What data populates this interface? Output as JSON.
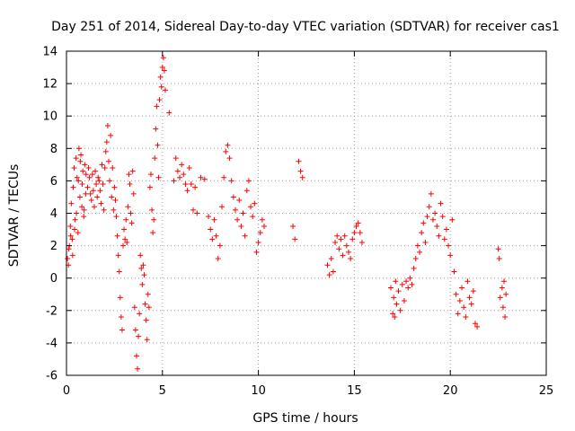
{
  "chart_data": {
    "type": "scatter",
    "title": "Day 251 of 2014, Sidereal Day-to-day VTEC variation (SDTVAR) for receiver cas1",
    "xlabel": "GPS time / hours",
    "ylabel": "SDTVAR / TECUs",
    "xlim": [
      0,
      25
    ],
    "ylim": [
      -6,
      14
    ],
    "xticks": [
      "0",
      "5",
      "10",
      "15",
      "20",
      "25"
    ],
    "yticks": [
      "-6",
      "-4",
      "-2",
      "0",
      "2",
      "4",
      "6",
      "8",
      "10",
      "12",
      "14"
    ],
    "grid": true,
    "marker": "+",
    "color": "#ff0000",
    "series": [
      {
        "name": "SDTVAR",
        "points": [
          [
            0.05,
            1.2
          ],
          [
            0.1,
            0.8
          ],
          [
            0.15,
            2.0
          ],
          [
            0.2,
            3.2
          ],
          [
            0.25,
            4.6
          ],
          [
            0.3,
            2.4
          ],
          [
            0.35,
            5.6
          ],
          [
            0.4,
            6.8
          ],
          [
            0.45,
            3.6
          ],
          [
            0.5,
            7.4
          ],
          [
            0.55,
            6.2
          ],
          [
            0.6,
            2.8
          ],
          [
            0.65,
            8.0
          ],
          [
            0.7,
            5.0
          ],
          [
            0.75,
            7.6
          ],
          [
            0.8,
            4.4
          ],
          [
            0.85,
            6.6
          ],
          [
            0.9,
            3.8
          ],
          [
            0.95,
            7.0
          ],
          [
            1.0,
            5.2
          ],
          [
            0.12,
            1.8
          ],
          [
            0.22,
            2.6
          ],
          [
            0.32,
            1.4
          ],
          [
            0.42,
            3.0
          ],
          [
            0.52,
            4.0
          ],
          [
            0.62,
            6.0
          ],
          [
            0.72,
            7.2
          ],
          [
            0.82,
            5.8
          ],
          [
            0.92,
            4.2
          ],
          [
            1.02,
            6.4
          ],
          [
            1.1,
            5.6
          ],
          [
            1.2,
            6.2
          ],
          [
            1.3,
            4.8
          ],
          [
            1.4,
            5.4
          ],
          [
            1.5,
            6.6
          ],
          [
            1.6,
            5.0
          ],
          [
            1.7,
            6.0
          ],
          [
            1.8,
            4.6
          ],
          [
            1.9,
            5.8
          ],
          [
            2.0,
            6.8
          ],
          [
            1.15,
            6.8
          ],
          [
            1.25,
            5.2
          ],
          [
            1.35,
            6.4
          ],
          [
            1.45,
            4.4
          ],
          [
            1.55,
            5.8
          ],
          [
            1.65,
            6.2
          ],
          [
            1.75,
            5.4
          ],
          [
            1.85,
            7.0
          ],
          [
            1.95,
            4.2
          ],
          [
            2.05,
            7.8
          ],
          [
            2.1,
            8.4
          ],
          [
            2.15,
            9.4
          ],
          [
            2.2,
            7.2
          ],
          [
            2.25,
            6.0
          ],
          [
            2.3,
            8.8
          ],
          [
            2.35,
            5.0
          ],
          [
            2.4,
            6.8
          ],
          [
            2.45,
            4.2
          ],
          [
            2.5,
            5.6
          ],
          [
            2.55,
            4.8
          ],
          [
            2.6,
            3.8
          ],
          [
            2.65,
            2.6
          ],
          [
            2.7,
            1.4
          ],
          [
            2.75,
            0.4
          ],
          [
            2.8,
            -1.2
          ],
          [
            2.85,
            -2.4
          ],
          [
            2.9,
            -3.2
          ],
          [
            2.95,
            2.0
          ],
          [
            3.0,
            3.0
          ],
          [
            3.05,
            2.4
          ],
          [
            3.1,
            3.6
          ],
          [
            3.15,
            2.2
          ],
          [
            3.2,
            4.4
          ],
          [
            3.25,
            6.4
          ],
          [
            3.3,
            5.8
          ],
          [
            3.35,
            4.0
          ],
          [
            3.4,
            3.4
          ],
          [
            3.45,
            6.6
          ],
          [
            3.5,
            5.2
          ],
          [
            3.55,
            -1.8
          ],
          [
            3.6,
            -3.2
          ],
          [
            3.65,
            -4.8
          ],
          [
            3.7,
            -5.6
          ],
          [
            3.75,
            -3.6
          ],
          [
            3.8,
            -2.2
          ],
          [
            3.85,
            1.4
          ],
          [
            3.9,
            0.6
          ],
          [
            3.95,
            -0.4
          ],
          [
            4.0,
            0.8
          ],
          [
            4.05,
            0.2
          ],
          [
            4.1,
            -1.6
          ],
          [
            4.15,
            -2.6
          ],
          [
            4.2,
            -3.8
          ],
          [
            4.25,
            -1.0
          ],
          [
            4.3,
            -1.8
          ],
          [
            4.35,
            5.6
          ],
          [
            4.4,
            6.4
          ],
          [
            4.45,
            4.2
          ],
          [
            4.5,
            2.8
          ],
          [
            4.55,
            3.6
          ],
          [
            4.6,
            7.4
          ],
          [
            4.65,
            9.2
          ],
          [
            4.7,
            10.6
          ],
          [
            4.75,
            8.2
          ],
          [
            4.8,
            6.2
          ],
          [
            4.85,
            11.0
          ],
          [
            4.9,
            12.4
          ],
          [
            4.95,
            11.8
          ],
          [
            5.0,
            13.0
          ],
          [
            5.05,
            13.6
          ],
          [
            5.1,
            12.8
          ],
          [
            5.15,
            11.6
          ],
          [
            5.35,
            10.2
          ],
          [
            5.6,
            6.0
          ],
          [
            5.7,
            7.4
          ],
          [
            5.8,
            6.6
          ],
          [
            5.9,
            6.2
          ],
          [
            6.0,
            7.0
          ],
          [
            6.1,
            6.4
          ],
          [
            6.2,
            5.8
          ],
          [
            6.3,
            5.4
          ],
          [
            6.4,
            6.8
          ],
          [
            6.5,
            5.8
          ],
          [
            6.6,
            4.2
          ],
          [
            6.7,
            5.6
          ],
          [
            6.8,
            4.0
          ],
          [
            7.0,
            6.2
          ],
          [
            7.2,
            6.1
          ],
          [
            7.4,
            3.8
          ],
          [
            7.5,
            3.0
          ],
          [
            7.6,
            2.4
          ],
          [
            7.7,
            3.6
          ],
          [
            7.8,
            2.6
          ],
          [
            7.9,
            1.2
          ],
          [
            8.0,
            2.0
          ],
          [
            8.1,
            4.4
          ],
          [
            8.2,
            6.2
          ],
          [
            8.3,
            7.8
          ],
          [
            8.4,
            8.2
          ],
          [
            8.5,
            7.4
          ],
          [
            8.6,
            6.0
          ],
          [
            8.7,
            5.0
          ],
          [
            8.8,
            4.2
          ],
          [
            8.9,
            3.6
          ],
          [
            9.0,
            4.8
          ],
          [
            9.1,
            3.2
          ],
          [
            9.2,
            4.0
          ],
          [
            9.3,
            2.6
          ],
          [
            9.4,
            5.4
          ],
          [
            9.5,
            6.0
          ],
          [
            9.6,
            4.4
          ],
          [
            9.7,
            3.8
          ],
          [
            9.8,
            4.6
          ],
          [
            9.9,
            1.6
          ],
          [
            10.0,
            2.2
          ],
          [
            10.1,
            2.8
          ],
          [
            10.2,
            3.6
          ],
          [
            10.3,
            3.2
          ],
          [
            11.8,
            3.2
          ],
          [
            11.9,
            2.4
          ],
          [
            12.1,
            7.2
          ],
          [
            12.2,
            6.6
          ],
          [
            12.3,
            6.2
          ],
          [
            13.6,
            0.8
          ],
          [
            13.7,
            0.2
          ],
          [
            13.8,
            1.2
          ],
          [
            13.9,
            0.4
          ],
          [
            14.0,
            2.2
          ],
          [
            14.1,
            2.6
          ],
          [
            14.2,
            1.8
          ],
          [
            14.3,
            2.4
          ],
          [
            14.4,
            1.4
          ],
          [
            14.5,
            2.6
          ],
          [
            14.6,
            2.0
          ],
          [
            14.7,
            1.6
          ],
          [
            14.8,
            1.2
          ],
          [
            14.9,
            2.4
          ],
          [
            15.0,
            2.8
          ],
          [
            15.1,
            3.2
          ],
          [
            15.2,
            3.4
          ],
          [
            15.3,
            2.8
          ],
          [
            15.4,
            2.2
          ],
          [
            16.9,
            -0.6
          ],
          [
            17.0,
            -2.2
          ],
          [
            17.05,
            -1.2
          ],
          [
            17.1,
            -2.4
          ],
          [
            17.15,
            -0.2
          ],
          [
            17.2,
            -1.6
          ],
          [
            17.3,
            -0.8
          ],
          [
            17.4,
            -2.0
          ],
          [
            17.5,
            -0.4
          ],
          [
            17.6,
            -1.4
          ],
          [
            17.7,
            -0.2
          ],
          [
            17.8,
            -0.6
          ],
          [
            17.9,
            0.0
          ],
          [
            18.0,
            -0.4
          ],
          [
            18.1,
            0.6
          ],
          [
            18.2,
            1.2
          ],
          [
            18.3,
            2.0
          ],
          [
            18.4,
            1.6
          ],
          [
            18.5,
            2.8
          ],
          [
            18.6,
            3.4
          ],
          [
            18.7,
            2.2
          ],
          [
            18.8,
            3.8
          ],
          [
            18.9,
            4.4
          ],
          [
            19.0,
            5.2
          ],
          [
            19.1,
            3.6
          ],
          [
            19.2,
            4.0
          ],
          [
            19.3,
            3.2
          ],
          [
            19.4,
            2.6
          ],
          [
            19.5,
            4.6
          ],
          [
            19.6,
            3.8
          ],
          [
            19.7,
            2.4
          ],
          [
            19.8,
            3.0
          ],
          [
            19.9,
            2.0
          ],
          [
            20.0,
            1.4
          ],
          [
            20.1,
            3.6
          ],
          [
            20.2,
            0.4
          ],
          [
            20.3,
            -1.0
          ],
          [
            20.4,
            -2.2
          ],
          [
            20.5,
            -1.4
          ],
          [
            20.6,
            -0.6
          ],
          [
            20.7,
            -1.8
          ],
          [
            20.8,
            -2.4
          ],
          [
            20.9,
            -0.2
          ],
          [
            21.0,
            -1.2
          ],
          [
            21.1,
            -1.6
          ],
          [
            21.2,
            -0.8
          ],
          [
            21.3,
            -2.8
          ],
          [
            21.4,
            -3.0
          ],
          [
            22.5,
            1.8
          ],
          [
            22.55,
            1.2
          ],
          [
            22.6,
            -1.2
          ],
          [
            22.7,
            -0.6
          ],
          [
            22.75,
            -1.8
          ],
          [
            22.8,
            -0.2
          ],
          [
            22.85,
            -2.4
          ],
          [
            22.9,
            -1.0
          ]
        ]
      }
    ]
  }
}
